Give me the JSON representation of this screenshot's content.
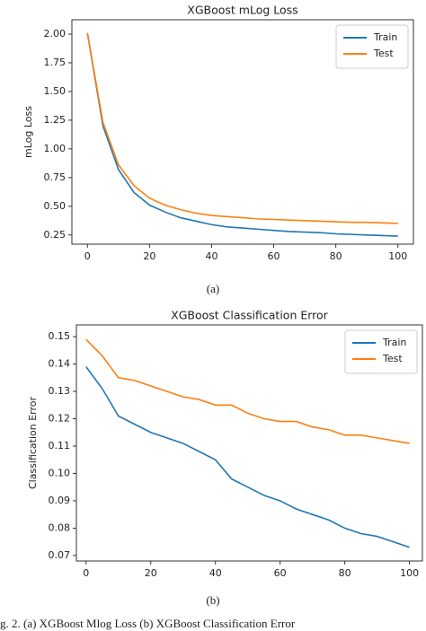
{
  "chart_data": [
    {
      "type": "line",
      "title": "XGBoost mLog Loss",
      "y_label": "mLog Loss",
      "caption": "(a)",
      "x": [
        0,
        5,
        10,
        15,
        20,
        25,
        30,
        35,
        40,
        45,
        50,
        55,
        60,
        65,
        70,
        75,
        80,
        85,
        90,
        95,
        100
      ],
      "series": [
        {
          "name": "Train",
          "color": "#1f77b4",
          "values": [
            2.01,
            1.2,
            0.82,
            0.62,
            0.51,
            0.45,
            0.4,
            0.37,
            0.34,
            0.32,
            0.31,
            0.3,
            0.29,
            0.28,
            0.275,
            0.27,
            0.26,
            0.255,
            0.25,
            0.245,
            0.24
          ]
        },
        {
          "name": "Test",
          "color": "#ff7f0e",
          "values": [
            2.01,
            1.23,
            0.86,
            0.68,
            0.57,
            0.51,
            0.47,
            0.44,
            0.42,
            0.41,
            0.4,
            0.39,
            0.385,
            0.38,
            0.375,
            0.37,
            0.365,
            0.36,
            0.36,
            0.355,
            0.35
          ]
        }
      ],
      "xlim": [
        -5,
        105
      ],
      "ylim": [
        0.17,
        2.125
      ],
      "xticks": [
        0,
        20,
        40,
        60,
        80,
        100
      ],
      "yticks": [
        {
          "value": 0.25,
          "label": "0.25"
        },
        {
          "value": 0.5,
          "label": "0.50"
        },
        {
          "value": 0.75,
          "label": "0.75"
        },
        {
          "value": 1,
          "label": "1.00"
        },
        {
          "value": 1.25,
          "label": "1.25"
        },
        {
          "value": 1.5,
          "label": "1.50"
        },
        {
          "value": 1.75,
          "label": "1.75"
        },
        {
          "value": 2,
          "label": "2.00"
        }
      ],
      "legend": "upper right",
      "grid": false
    },
    {
      "type": "line",
      "title": "XGBoost Classification Error",
      "y_label": "Classification Error",
      "caption": "(b)",
      "x": [
        0,
        5,
        10,
        15,
        20,
        25,
        30,
        35,
        40,
        45,
        50,
        55,
        60,
        65,
        70,
        75,
        80,
        85,
        90,
        95,
        100
      ],
      "series": [
        {
          "name": "Train",
          "color": "#1f77b4",
          "values": [
            0.139,
            0.131,
            0.121,
            0.118,
            0.115,
            0.113,
            0.111,
            0.108,
            0.105,
            0.098,
            0.095,
            0.092,
            0.09,
            0.087,
            0.085,
            0.083,
            0.08,
            0.078,
            0.077,
            0.075,
            0.073
          ]
        },
        {
          "name": "Test",
          "color": "#ff7f0e",
          "values": [
            0.149,
            0.143,
            0.135,
            0.134,
            0.132,
            0.13,
            0.128,
            0.127,
            0.125,
            0.125,
            0.122,
            0.12,
            0.119,
            0.119,
            0.117,
            0.116,
            0.114,
            0.114,
            0.113,
            0.112,
            0.111
          ]
        }
      ],
      "xlim": [
        -3,
        104
      ],
      "ylim": [
        0.068,
        0.1543
      ],
      "xticks": [
        0,
        20,
        40,
        60,
        80,
        100
      ],
      "yticks": [
        {
          "value": 0.07,
          "label": "0.07"
        },
        {
          "value": 0.08,
          "label": "0.08"
        },
        {
          "value": 0.09,
          "label": "0.09"
        },
        {
          "value": 0.1,
          "label": "0.10"
        },
        {
          "value": 0.11,
          "label": "0.11"
        },
        {
          "value": 0.12,
          "label": "0.12"
        },
        {
          "value": 0.13,
          "label": "0.13"
        },
        {
          "value": 0.14,
          "label": "0.14"
        },
        {
          "value": 0.15,
          "label": "0.15"
        }
      ],
      "legend": "upper right",
      "grid": false
    }
  ],
  "figure_caption": "g. 2.   (a) XGBoost Mlog Loss (b) XGBoost Classification Error"
}
